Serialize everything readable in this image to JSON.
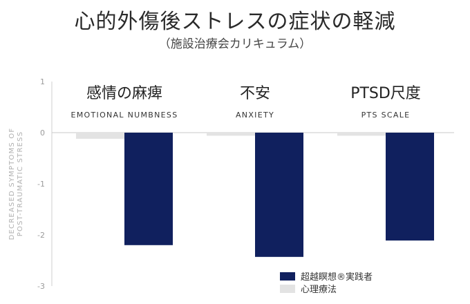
{
  "chart_data": {
    "type": "bar",
    "title": "心的外傷後ストレスの症状の軽減",
    "subtitle": "（施設治療会カリキュラム）",
    "ylabel_line1": "DECREASED SYMPTOMS OF",
    "ylabel_line2": "POST-TRAUMATIC STRESS",
    "ylim": [
      -3,
      1
    ],
    "yticks": [
      1,
      0,
      -1,
      -2,
      -3
    ],
    "categories": [
      {
        "ja": "感情の麻痺",
        "en": "EMOTIONAL NUMBNESS"
      },
      {
        "ja": "不安",
        "en": "ANXIETY"
      },
      {
        "ja": "PTSD尺度",
        "en": "PTS SCALE"
      }
    ],
    "series": [
      {
        "name": "心理療法",
        "color": "#e3e3e3",
        "values": [
          -0.12,
          -0.06,
          -0.06
        ]
      },
      {
        "name": "超越瞑想®実践者",
        "color": "#10205e",
        "values": [
          -2.2,
          -2.43,
          -2.11
        ]
      }
    ],
    "legend_position": "bottom-right",
    "legend_order": [
      1,
      0
    ],
    "grid": false
  }
}
